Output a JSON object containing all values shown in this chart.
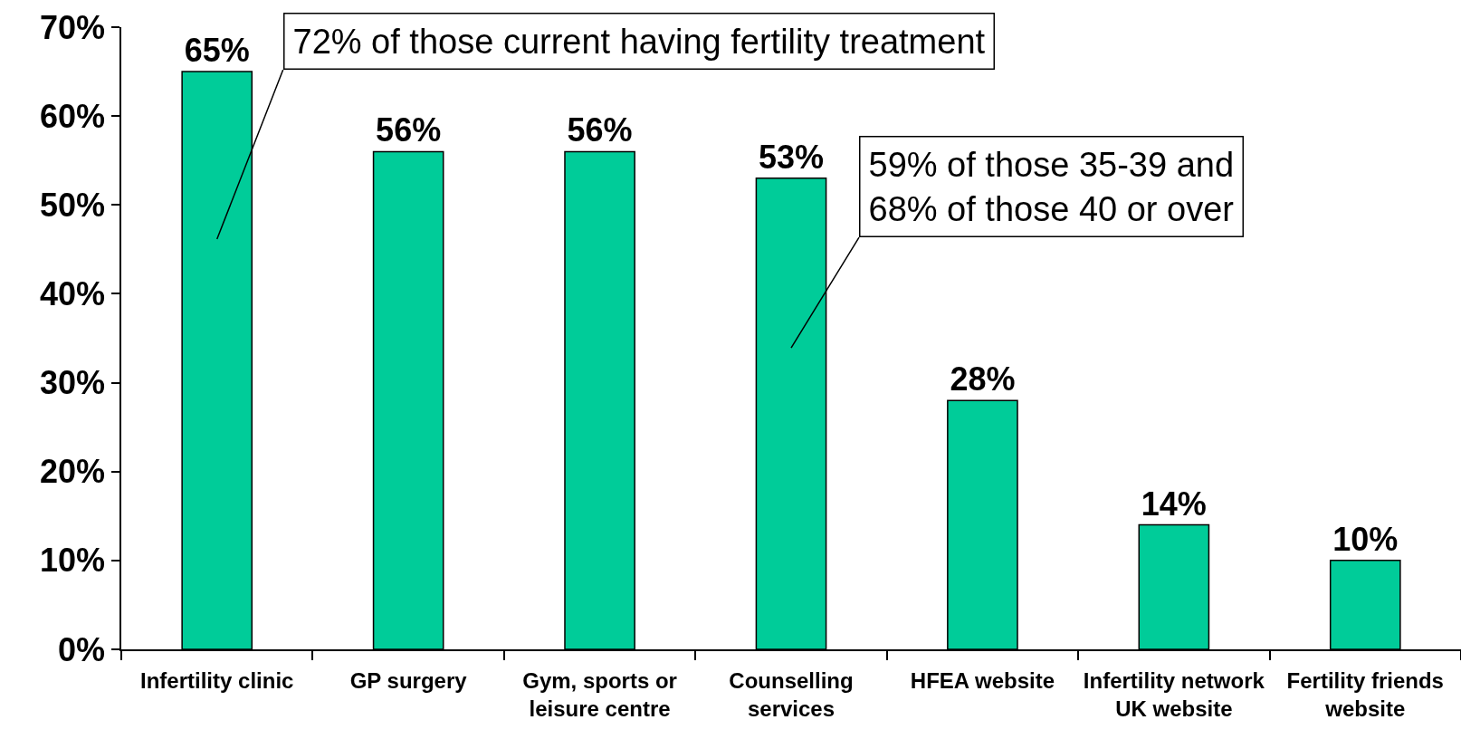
{
  "chart_data": {
    "type": "bar",
    "categories": [
      "Infertility clinic",
      "GP surgery",
      "Gym, sports or leisure centre",
      "Counselling services",
      "HFEA website",
      "Infertility network UK website",
      "Fertility friends website"
    ],
    "values": [
      65,
      56,
      56,
      53,
      28,
      14,
      10
    ],
    "color": "#00cc99",
    "value_labels": [
      "65%",
      "56%",
      "56%",
      "53%",
      "28%",
      "14%",
      "10%"
    ],
    "ylim": [
      0,
      70
    ],
    "yticks": [
      {
        "value": 0,
        "label": "0%"
      },
      {
        "value": 10,
        "label": "10%"
      },
      {
        "value": 20,
        "label": "20%"
      },
      {
        "value": 30,
        "label": "30%"
      },
      {
        "value": 40,
        "label": "40%"
      },
      {
        "value": 50,
        "label": "50%"
      },
      {
        "value": 60,
        "label": "60%"
      },
      {
        "value": 70,
        "label": "70%"
      }
    ],
    "grid": false,
    "annotations": [
      "72% of those current having fertility treatment",
      "59% of those 35-39 and\n68% of those 40 or over"
    ]
  }
}
